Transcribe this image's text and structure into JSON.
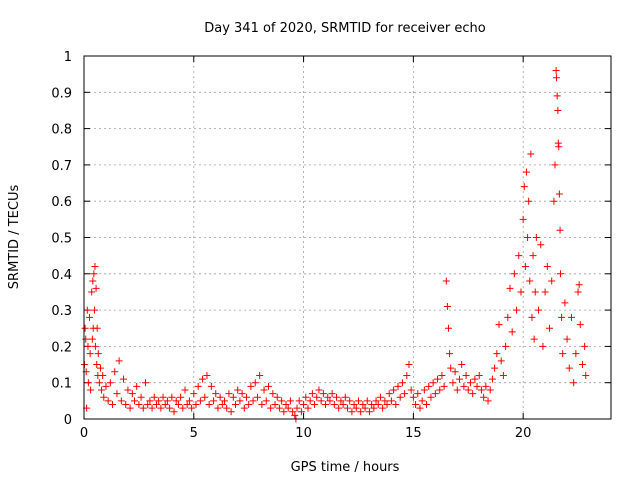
{
  "chart_data": {
    "type": "scatter",
    "title": "Day 341 of 2020, SRMTID for receiver echo",
    "xlabel": "GPS time / hours",
    "ylabel": "SRMTID / TECUs",
    "xlim": [
      0,
      24
    ],
    "ylim": [
      0,
      1
    ],
    "xticks": [
      0,
      5,
      10,
      15,
      20
    ],
    "xtick_labels": [
      "0",
      "5",
      "10",
      "15",
      "20"
    ],
    "yticks": [
      0,
      0.1,
      0.2,
      0.3,
      0.4,
      0.5,
      0.6,
      0.7,
      0.8,
      0.9,
      1
    ],
    "ytick_labels": [
      "0",
      "0.1",
      "0.2",
      "0.3",
      "0.4",
      "0.5",
      "0.6",
      "0.7",
      "0.8",
      "0.9",
      "1"
    ],
    "grid": true,
    "marker": "+",
    "series": [
      {
        "name": "SRMTID",
        "color": "#ff0000",
        "points": [
          [
            0.02,
            0.15
          ],
          [
            0.05,
            0.25
          ],
          [
            0.08,
            0.22
          ],
          [
            0.1,
            0.13
          ],
          [
            0.12,
            0.03
          ],
          [
            0.15,
            0.3
          ],
          [
            0.18,
            0.2
          ],
          [
            0.2,
            0.1
          ],
          [
            0.25,
            0.28
          ],
          [
            0.28,
            0.18
          ],
          [
            0.3,
            0.08
          ],
          [
            0.35,
            0.35
          ],
          [
            0.38,
            0.22
          ],
          [
            0.4,
            0.38
          ],
          [
            0.42,
            0.25
          ],
          [
            0.45,
            0.4
          ],
          [
            0.48,
            0.3
          ],
          [
            0.5,
            0.42
          ],
          [
            0.52,
            0.2
          ],
          [
            0.55,
            0.36
          ],
          [
            0.58,
            0.15
          ],
          [
            0.6,
            0.25
          ],
          [
            0.63,
            0.12
          ],
          [
            0.65,
            0.18
          ],
          [
            0.7,
            0.1
          ],
          [
            0.75,
            0.14
          ],
          [
            0.8,
            0.08
          ],
          [
            0.85,
            0.12
          ],
          [
            0.9,
            0.06
          ],
          [
            1.0,
            0.09
          ],
          [
            1.1,
            0.05
          ],
          [
            1.2,
            0.1
          ],
          [
            1.3,
            0.04
          ],
          [
            1.4,
            0.13
          ],
          [
            1.5,
            0.07
          ],
          [
            1.6,
            0.16
          ],
          [
            1.7,
            0.05
          ],
          [
            1.8,
            0.11
          ],
          [
            1.9,
            0.04
          ],
          [
            2.0,
            0.08
          ],
          [
            2.1,
            0.03
          ],
          [
            2.2,
            0.07
          ],
          [
            2.3,
            0.05
          ],
          [
            2.4,
            0.09
          ],
          [
            2.5,
            0.04
          ],
          [
            2.6,
            0.06
          ],
          [
            2.7,
            0.03
          ],
          [
            2.8,
            0.1
          ],
          [
            2.9,
            0.04
          ],
          [
            3.0,
            0.05
          ],
          [
            3.1,
            0.03
          ],
          [
            3.2,
            0.06
          ],
          [
            3.3,
            0.04
          ],
          [
            3.4,
            0.05
          ],
          [
            3.5,
            0.03
          ],
          [
            3.6,
            0.06
          ],
          [
            3.7,
            0.04
          ],
          [
            3.8,
            0.05
          ],
          [
            3.9,
            0.03
          ],
          [
            4.0,
            0.06
          ],
          [
            4.1,
            0.02
          ],
          [
            4.2,
            0.05
          ],
          [
            4.3,
            0.04
          ],
          [
            4.4,
            0.06
          ],
          [
            4.5,
            0.03
          ],
          [
            4.6,
            0.08
          ],
          [
            4.7,
            0.04
          ],
          [
            4.8,
            0.05
          ],
          [
            4.9,
            0.03
          ],
          [
            5.0,
            0.07
          ],
          [
            5.1,
            0.04
          ],
          [
            5.2,
            0.09
          ],
          [
            5.3,
            0.05
          ],
          [
            5.4,
            0.11
          ],
          [
            5.5,
            0.06
          ],
          [
            5.6,
            0.12
          ],
          [
            5.7,
            0.04
          ],
          [
            5.8,
            0.09
          ],
          [
            5.9,
            0.05
          ],
          [
            6.0,
            0.07
          ],
          [
            6.1,
            0.03
          ],
          [
            6.2,
            0.06
          ],
          [
            6.3,
            0.04
          ],
          [
            6.4,
            0.05
          ],
          [
            6.5,
            0.03
          ],
          [
            6.6,
            0.07
          ],
          [
            6.7,
            0.02
          ],
          [
            6.8,
            0.06
          ],
          [
            6.9,
            0.04
          ],
          [
            7.0,
            0.08
          ],
          [
            7.1,
            0.05
          ],
          [
            7.2,
            0.07
          ],
          [
            7.3,
            0.03
          ],
          [
            7.4,
            0.06
          ],
          [
            7.5,
            0.04
          ],
          [
            7.6,
            0.09
          ],
          [
            7.7,
            0.05
          ],
          [
            7.8,
            0.1
          ],
          [
            7.9,
            0.06
          ],
          [
            8.0,
            0.12
          ],
          [
            8.1,
            0.04
          ],
          [
            8.2,
            0.08
          ],
          [
            8.3,
            0.05
          ],
          [
            8.4,
            0.09
          ],
          [
            8.5,
            0.03
          ],
          [
            8.6,
            0.07
          ],
          [
            8.7,
            0.04
          ],
          [
            8.8,
            0.06
          ],
          [
            8.9,
            0.03
          ],
          [
            9.0,
            0.05
          ],
          [
            9.1,
            0.02
          ],
          [
            9.2,
            0.04
          ],
          [
            9.3,
            0.03
          ],
          [
            9.4,
            0.05
          ],
          [
            9.5,
            0.02
          ],
          [
            9.6,
            0.01
          ],
          [
            9.65,
            0.0
          ],
          [
            9.7,
            0.03
          ],
          [
            9.8,
            0.05
          ],
          [
            9.9,
            0.02
          ],
          [
            10.0,
            0.04
          ],
          [
            10.1,
            0.06
          ],
          [
            10.2,
            0.03
          ],
          [
            10.3,
            0.05
          ],
          [
            10.4,
            0.07
          ],
          [
            10.5,
            0.04
          ],
          [
            10.6,
            0.06
          ],
          [
            10.7,
            0.08
          ],
          [
            10.8,
            0.05
          ],
          [
            10.9,
            0.07
          ],
          [
            11.0,
            0.04
          ],
          [
            11.1,
            0.06
          ],
          [
            11.2,
            0.05
          ],
          [
            11.3,
            0.07
          ],
          [
            11.4,
            0.04
          ],
          [
            11.5,
            0.06
          ],
          [
            11.6,
            0.03
          ],
          [
            11.7,
            0.05
          ],
          [
            11.8,
            0.04
          ],
          [
            11.9,
            0.06
          ],
          [
            12.0,
            0.03
          ],
          [
            12.1,
            0.05
          ],
          [
            12.2,
            0.02
          ],
          [
            12.3,
            0.04
          ],
          [
            12.4,
            0.03
          ],
          [
            12.5,
            0.05
          ],
          [
            12.6,
            0.02
          ],
          [
            12.7,
            0.04
          ],
          [
            12.8,
            0.03
          ],
          [
            12.9,
            0.05
          ],
          [
            13.0,
            0.02
          ],
          [
            13.1,
            0.04
          ],
          [
            13.2,
            0.03
          ],
          [
            13.3,
            0.05
          ],
          [
            13.4,
            0.04
          ],
          [
            13.5,
            0.06
          ],
          [
            13.6,
            0.03
          ],
          [
            13.7,
            0.05
          ],
          [
            13.8,
            0.04
          ],
          [
            13.9,
            0.07
          ],
          [
            14.0,
            0.05
          ],
          [
            14.1,
            0.08
          ],
          [
            14.2,
            0.04
          ],
          [
            14.3,
            0.09
          ],
          [
            14.4,
            0.06
          ],
          [
            14.5,
            0.1
          ],
          [
            14.6,
            0.07
          ],
          [
            14.7,
            0.12
          ],
          [
            14.8,
            0.15
          ],
          [
            14.9,
            0.08
          ],
          [
            15.0,
            0.06
          ],
          [
            15.1,
            0.04
          ],
          [
            15.2,
            0.07
          ],
          [
            15.3,
            0.03
          ],
          [
            15.4,
            0.05
          ],
          [
            15.5,
            0.08
          ],
          [
            15.6,
            0.04
          ],
          [
            15.7,
            0.09
          ],
          [
            15.8,
            0.06
          ],
          [
            15.9,
            0.1
          ],
          [
            16.0,
            0.07
          ],
          [
            16.1,
            0.11
          ],
          [
            16.2,
            0.08
          ],
          [
            16.3,
            0.12
          ],
          [
            16.4,
            0.09
          ],
          [
            16.5,
            0.38
          ],
          [
            16.55,
            0.31
          ],
          [
            16.6,
            0.25
          ],
          [
            16.65,
            0.18
          ],
          [
            16.7,
            0.14
          ],
          [
            16.8,
            0.1
          ],
          [
            16.9,
            0.13
          ],
          [
            17.0,
            0.08
          ],
          [
            17.1,
            0.11
          ],
          [
            17.2,
            0.15
          ],
          [
            17.3,
            0.09
          ],
          [
            17.4,
            0.12
          ],
          [
            17.5,
            0.08
          ],
          [
            17.6,
            0.1
          ],
          [
            17.7,
            0.07
          ],
          [
            17.8,
            0.11
          ],
          [
            17.9,
            0.09
          ],
          [
            18.0,
            0.12
          ],
          [
            18.1,
            0.08
          ],
          [
            18.2,
            0.06
          ],
          [
            18.3,
            0.09
          ],
          [
            18.4,
            0.05
          ],
          [
            18.5,
            0.08
          ],
          [
            18.6,
            0.11
          ],
          [
            18.7,
            0.14
          ],
          [
            18.8,
            0.18
          ],
          [
            18.9,
            0.26
          ],
          [
            19.0,
            0.16
          ],
          [
            19.1,
            0.12
          ],
          [
            19.2,
            0.2
          ],
          [
            19.3,
            0.28
          ],
          [
            19.4,
            0.36
          ],
          [
            19.5,
            0.24
          ],
          [
            19.6,
            0.4
          ],
          [
            19.7,
            0.3
          ],
          [
            19.8,
            0.45
          ],
          [
            19.9,
            0.35
          ],
          [
            20.0,
            0.55
          ],
          [
            20.05,
            0.64
          ],
          [
            20.1,
            0.42
          ],
          [
            20.15,
            0.68
          ],
          [
            20.2,
            0.5
          ],
          [
            20.25,
            0.6
          ],
          [
            20.3,
            0.38
          ],
          [
            20.35,
            0.73
          ],
          [
            20.4,
            0.28
          ],
          [
            20.45,
            0.45
          ],
          [
            20.5,
            0.22
          ],
          [
            20.55,
            0.35
          ],
          [
            20.6,
            0.5
          ],
          [
            20.7,
            0.3
          ],
          [
            20.8,
            0.48
          ],
          [
            20.9,
            0.2
          ],
          [
            21.0,
            0.35
          ],
          [
            21.1,
            0.42
          ],
          [
            21.2,
            0.25
          ],
          [
            21.3,
            0.38
          ],
          [
            21.4,
            0.6
          ],
          [
            21.45,
            0.7
          ],
          [
            21.5,
            0.96
          ],
          [
            21.52,
            0.94
          ],
          [
            21.55,
            0.89
          ],
          [
            21.58,
            0.85
          ],
          [
            21.6,
            0.76
          ],
          [
            21.62,
            0.75
          ],
          [
            21.65,
            0.62
          ],
          [
            21.68,
            0.52
          ],
          [
            21.7,
            0.4
          ],
          [
            21.75,
            0.28
          ],
          [
            21.8,
            0.18
          ],
          [
            21.9,
            0.32
          ],
          [
            22.0,
            0.22
          ],
          [
            22.1,
            0.14
          ],
          [
            22.2,
            0.28
          ],
          [
            22.3,
            0.1
          ],
          [
            22.4,
            0.18
          ],
          [
            22.5,
            0.35
          ],
          [
            22.55,
            0.37
          ],
          [
            22.6,
            0.26
          ],
          [
            22.7,
            0.15
          ],
          [
            22.8,
            0.2
          ],
          [
            22.85,
            0.12
          ]
        ]
      }
    ]
  }
}
